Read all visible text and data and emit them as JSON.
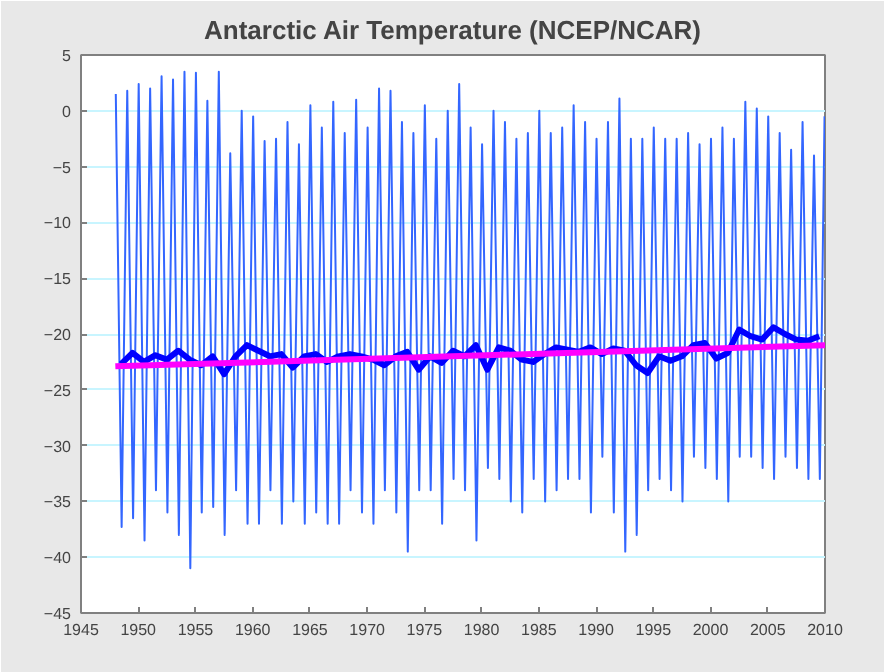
{
  "chart_data": {
    "type": "line",
    "title": "Antarctic Air Temperature (NCEP/NCAR)",
    "xlim": [
      1945,
      2010
    ],
    "xticks": [
      1945,
      1950,
      1955,
      1960,
      1965,
      1970,
      1975,
      1980,
      1985,
      1990,
      1995,
      2000,
      2005,
      2010
    ],
    "ylim": [
      -45,
      5
    ],
    "yticks": [
      -45,
      -40,
      -35,
      -30,
      -25,
      -20,
      -15,
      -10,
      -5,
      0,
      5
    ],
    "grid": "y",
    "series": [
      {
        "color": "#3366ff",
        "x": [
          1948.04,
          1948.55,
          1949.04,
          1949.55,
          1950.04,
          1950.55,
          1951.04,
          1951.55,
          1952.04,
          1952.55,
          1953.04,
          1953.55,
          1954.04,
          1954.55,
          1955.04,
          1955.55,
          1956.04,
          1956.55,
          1957.04,
          1957.55,
          1958.04,
          1958.55,
          1959.04,
          1959.55,
          1960.04,
          1960.55,
          1961.04,
          1961.55,
          1962.04,
          1962.55,
          1963.04,
          1963.55,
          1964.04,
          1964.55,
          1965.04,
          1965.55,
          1966.04,
          1966.55,
          1967.04,
          1967.55,
          1968.04,
          1968.55,
          1969.04,
          1969.55,
          1970.04,
          1970.55,
          1971.04,
          1971.55,
          1972.04,
          1972.55,
          1973.04,
          1973.55,
          1974.04,
          1974.55,
          1975.04,
          1975.55,
          1976.04,
          1976.55,
          1977.04,
          1977.55,
          1978.04,
          1978.55,
          1979.04,
          1979.55,
          1980.04,
          1980.55,
          1981.04,
          1981.55,
          1982.04,
          1982.55,
          1983.04,
          1983.55,
          1984.04,
          1984.55,
          1985.04,
          1985.55,
          1986.04,
          1986.55,
          1987.04,
          1987.55,
          1988.04,
          1988.55,
          1989.04,
          1989.55,
          1990.04,
          1990.55,
          1991.04,
          1991.55,
          1992.04,
          1992.55,
          1993.04,
          1993.55,
          1994.04,
          1994.55,
          1995.04,
          1995.55,
          1996.04,
          1996.55,
          1997.04,
          1997.55,
          1998.04,
          1998.55,
          1999.04,
          1999.55,
          2000.04,
          2000.55,
          2001.04,
          2001.55,
          2002.04,
          2002.55,
          2003.04,
          2003.55,
          2004.04,
          2004.55,
          2005.04,
          2005.55,
          2006.04,
          2006.55,
          2007.04,
          2007.55,
          2008.04,
          2008.55,
          2009.04,
          2009.55,
          2009.96
        ],
        "values": [
          1.5,
          -37.3,
          1.8,
          -36.5,
          2.4,
          -38.5,
          2.0,
          -34,
          3.1,
          -36,
          2.8,
          -38,
          3.5,
          -41,
          3.4,
          -36,
          0.9,
          -35.5,
          3.5,
          -38,
          -3.8,
          -34,
          0.0,
          -37,
          -0.5,
          -37,
          -2.7,
          -34,
          -2.5,
          -37,
          -1.0,
          -35,
          -3.0,
          -37,
          0.5,
          -36,
          -1.5,
          -37,
          0.8,
          -37,
          -2.0,
          -34,
          1.0,
          -36,
          -1.5,
          -37,
          2.0,
          -34,
          1.8,
          -36,
          -1.0,
          -39.5,
          -2.0,
          -34,
          0.5,
          -34,
          -2.5,
          -37,
          0.0,
          -33,
          2.4,
          -34,
          -1.5,
          -38.5,
          -3.0,
          -32,
          0.0,
          -33,
          -1.0,
          -35,
          -2.5,
          -36,
          -2.0,
          -33,
          0.0,
          -35,
          -2.0,
          -34,
          -1.5,
          -33,
          0.5,
          -33,
          -1.0,
          -36,
          -2.5,
          -31,
          -1.0,
          -36,
          1.1,
          -39.5,
          -2.5,
          -38,
          -2.5,
          -34,
          -1.5,
          -33,
          -2.5,
          -34,
          -2.5,
          -35,
          -2.0,
          -31,
          -3.0,
          -32,
          -2.5,
          -33,
          -1.5,
          -35,
          -2.5,
          -31,
          0.8,
          -31,
          0.2,
          -32,
          -0.5,
          -33,
          -2.0,
          -31,
          -3.5,
          -32,
          -1.0,
          -33,
          -4.0,
          -33,
          -0.5
        ]
      },
      {
        "color": "#0000ff",
        "x": [
          1948.5,
          1949.5,
          1950.5,
          1951.5,
          1952.5,
          1953.5,
          1954.5,
          1955.5,
          1956.5,
          1957.5,
          1958.5,
          1959.5,
          1960.5,
          1961.5,
          1962.5,
          1963.5,
          1964.5,
          1965.5,
          1966.5,
          1967.5,
          1968.5,
          1969.5,
          1970.5,
          1971.5,
          1972.5,
          1973.5,
          1974.5,
          1975.5,
          1976.5,
          1977.5,
          1978.5,
          1979.5,
          1980.5,
          1981.5,
          1982.5,
          1983.5,
          1984.5,
          1985.5,
          1986.5,
          1987.5,
          1988.5,
          1989.5,
          1990.5,
          1991.5,
          1992.5,
          1993.5,
          1994.5,
          1995.5,
          1996.5,
          1997.5,
          1998.5,
          1999.5,
          2000.5,
          2001.5,
          2002.5,
          2003.5,
          2004.5,
          2005.5,
          2006.5,
          2007.5,
          2008.5,
          2009.5
        ],
        "values": [
          -22.7,
          -21.7,
          -22.5,
          -21.9,
          -22.3,
          -21.5,
          -22.3,
          -22.8,
          -22.0,
          -23.6,
          -22.0,
          -21.0,
          -21.5,
          -22.0,
          -21.8,
          -23.0,
          -22.0,
          -21.8,
          -22.5,
          -22.0,
          -21.8,
          -22.0,
          -22.3,
          -22.8,
          -22.0,
          -21.6,
          -23.2,
          -22.0,
          -22.6,
          -21.5,
          -22.0,
          -21.0,
          -23.2,
          -21.2,
          -21.5,
          -22.3,
          -22.5,
          -21.8,
          -21.2,
          -21.4,
          -21.6,
          -21.2,
          -21.8,
          -21.3,
          -21.5,
          -22.8,
          -23.5,
          -22.0,
          -22.4,
          -22.0,
          -21.0,
          -20.8,
          -22.2,
          -21.7,
          -19.6,
          -20.2,
          -20.5,
          -19.4,
          -20.0,
          -20.5,
          -20.6,
          -20.2
        ]
      },
      {
        "color": "#ff00ff",
        "x": [
          1948,
          2010
        ],
        "values": [
          -22.9,
          -21.0
        ]
      }
    ]
  }
}
